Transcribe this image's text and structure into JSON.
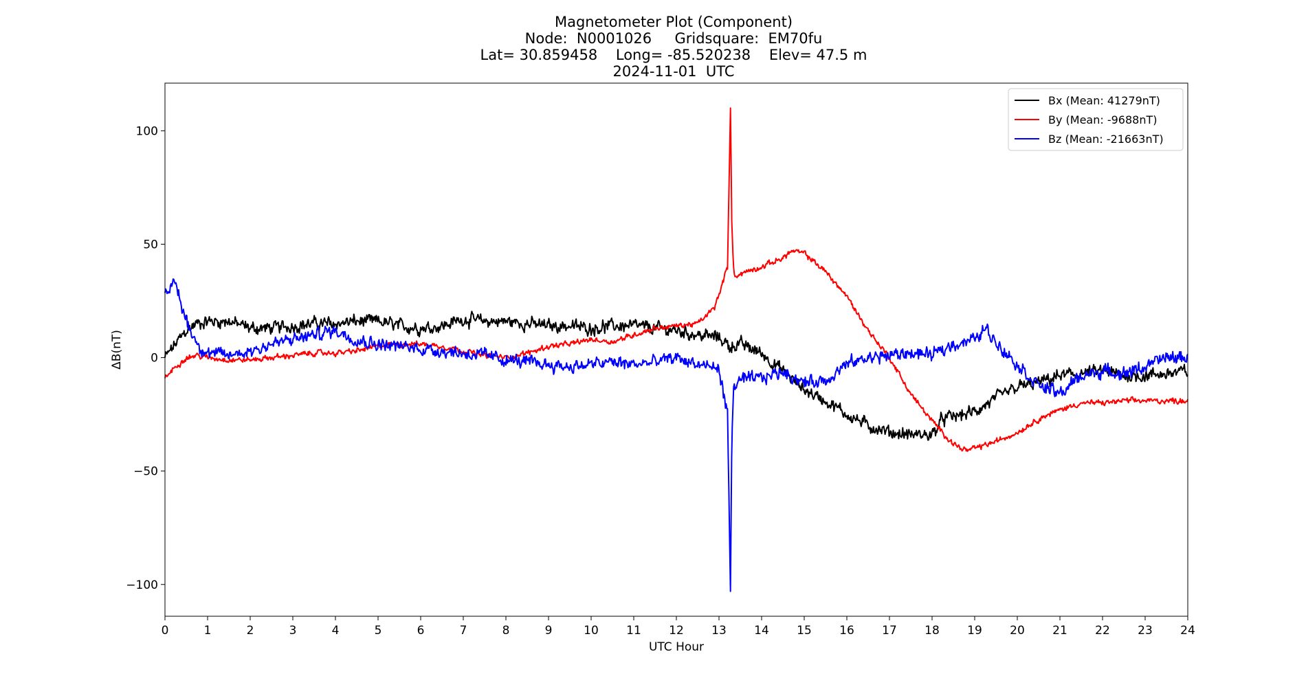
{
  "chart_data": {
    "type": "line",
    "title_lines": [
      "Magnetometer Plot (Component)",
      "Node:  N0001026     Gridsquare:  EM70fu",
      "Lat= 30.859458    Long= -85.520238    Elev= 47.5 m",
      "2024-11-01  UTC"
    ],
    "xlabel": "UTC Hour",
    "ylabel": "ΔB(nT)",
    "xlim": [
      0,
      24
    ],
    "ylim": [
      -114,
      121
    ],
    "xticks": [
      0,
      1,
      2,
      3,
      4,
      5,
      6,
      7,
      8,
      9,
      10,
      11,
      12,
      13,
      14,
      15,
      16,
      17,
      18,
      19,
      20,
      21,
      22,
      23,
      24
    ],
    "yticks": [
      100,
      50,
      0,
      -50,
      -100
    ],
    "ytick_labels": [
      "100",
      "50",
      "0",
      "−50",
      "−100"
    ],
    "grid": false,
    "legend_position": "top-right",
    "series": [
      {
        "name": "Bx (Mean: 41279nT)",
        "color": "#000000",
        "x": [
          0,
          0.25,
          0.5,
          0.75,
          1,
          1.5,
          2,
          2.5,
          3,
          3.5,
          4,
          4.5,
          5,
          5.5,
          6,
          6.5,
          7,
          7.5,
          8,
          8.5,
          9,
          9.5,
          10,
          10.5,
          11,
          11.5,
          12,
          12.5,
          13,
          13.25,
          13.5,
          14,
          14.5,
          15,
          15.5,
          16,
          16.5,
          17,
          17.5,
          18,
          18.25,
          18.5,
          19,
          19.5,
          20,
          20.5,
          21,
          21.5,
          22,
          22.5,
          23,
          23.5,
          24
        ],
        "y": [
          0,
          6,
          12,
          15,
          16,
          16,
          13,
          13,
          14,
          15,
          15,
          16,
          16,
          14,
          13,
          14,
          17,
          16,
          16,
          15,
          14,
          14,
          13,
          14,
          14,
          13,
          12,
          10,
          9,
          5,
          6,
          2,
          -6,
          -14,
          -19,
          -25,
          -30,
          -33,
          -34,
          -34,
          -27,
          -26,
          -24,
          -18,
          -13,
          -11,
          -8,
          -7,
          -6,
          -8,
          -8,
          -7,
          -6
        ],
        "noise": 3.5
      },
      {
        "name": "By (Mean: -9688nT)",
        "color": "#ff0000",
        "x": [
          0,
          0.25,
          0.5,
          0.75,
          1,
          1.5,
          2,
          2.5,
          3,
          3.5,
          4,
          4.5,
          5,
          5.5,
          6,
          6.5,
          7,
          7.5,
          8,
          8.5,
          9,
          9.5,
          10,
          10.5,
          11,
          11.5,
          12,
          12.5,
          12.9,
          13.2,
          13.27,
          13.3,
          13.35,
          13.5,
          14,
          14.5,
          14.7,
          15,
          15.5,
          16,
          16.5,
          17,
          17.5,
          18,
          18.5,
          18.8,
          19,
          19.5,
          20,
          20.5,
          21,
          21.5,
          22,
          22.5,
          23,
          23.5,
          24
        ],
        "y": [
          -9,
          -4,
          0,
          1,
          0,
          -1,
          -1,
          0,
          1,
          2,
          2,
          3,
          5,
          6,
          6,
          5,
          3,
          1,
          0,
          2,
          5,
          6,
          8,
          7,
          10,
          13,
          14,
          15,
          22,
          40,
          110,
          60,
          36,
          37,
          40,
          44,
          47,
          46,
          38,
          27,
          12,
          0,
          -16,
          -28,
          -38,
          -41,
          -40,
          -37,
          -33,
          -27,
          -23,
          -20,
          -20,
          -19,
          -19,
          -19,
          -19
        ],
        "noise": 1.5
      },
      {
        "name": "Bz (Mean: -21663nT)",
        "color": "#0000ff",
        "x": [
          0,
          0.15,
          0.25,
          0.4,
          0.6,
          0.8,
          1,
          1.5,
          2,
          2.5,
          3,
          3.5,
          4,
          4.5,
          5,
          5.5,
          6,
          6.5,
          7,
          7.5,
          8,
          8.5,
          9,
          9.5,
          10,
          10.5,
          11,
          11.5,
          12,
          12.5,
          13,
          13.2,
          13.27,
          13.3,
          13.35,
          13.5,
          14,
          14.5,
          15,
          15.5,
          16,
          16.5,
          17,
          17.5,
          18,
          18.5,
          19,
          19.25,
          19.5,
          20,
          20.5,
          21,
          21.5,
          22,
          22.5,
          23,
          23.5,
          24
        ],
        "y": [
          31,
          30,
          33,
          22,
          12,
          5,
          2,
          1,
          3,
          6,
          8,
          10,
          12,
          8,
          6,
          5,
          4,
          3,
          2,
          1,
          -1,
          -2,
          -3,
          -4,
          -3,
          -2,
          -3,
          -2,
          0,
          -3,
          -5,
          -25,
          -103,
          -35,
          -12,
          -10,
          -9,
          -6,
          -11,
          -10,
          -3,
          0,
          1,
          2,
          1,
          6,
          8,
          13,
          7,
          -3,
          -12,
          -16,
          -8,
          -6,
          -7,
          -4,
          0,
          0
        ],
        "noise": 3.5
      }
    ]
  }
}
